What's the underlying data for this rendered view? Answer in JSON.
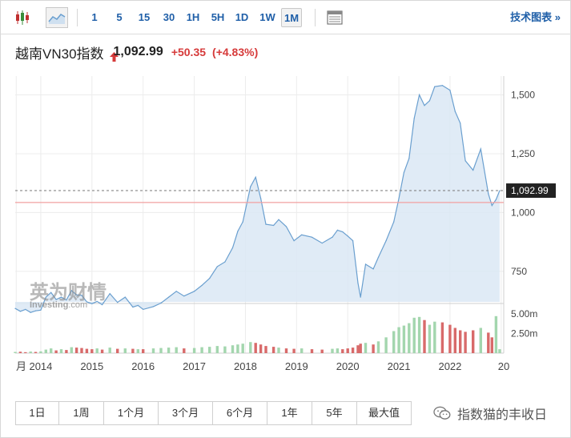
{
  "toolbar": {
    "timeframes": [
      "1",
      "5",
      "15",
      "30",
      "1H",
      "5H",
      "1D",
      "1W",
      "1M"
    ],
    "active_timeframe": "1M",
    "tech_chart_label": "技术图表 »"
  },
  "header": {
    "index_name": "越南VN30指数",
    "price": "1,092.99",
    "change": "+50.35",
    "change_pct": "(+4.83%)",
    "direction": "up"
  },
  "watermark": {
    "cn": "英为财情",
    "en": "Investing",
    "suffix": ".com"
  },
  "price_label": "1,092.99",
  "periods": [
    "1日",
    "1周",
    "1个月",
    "3个月",
    "6个月",
    "1年",
    "5年",
    "最大值"
  ],
  "brand_text": "指数猫的丰收日",
  "colors": {
    "line": "#6a9fcf",
    "area": "#dbe8f4",
    "up_volume": "#a3d6ae",
    "down_volume": "#d86a6a",
    "reference_line": "#f2a0a0",
    "current_label_bg": "#222222",
    "accent_blue": "#1f5fa8",
    "change_red": "#d63a3a"
  },
  "chart_data": {
    "type": "area",
    "title": "越南VN30指数",
    "x_tick_labels": [
      "月",
      "2014",
      "2015",
      "2016",
      "2017",
      "2018",
      "2019",
      "2020",
      "2021",
      "2022",
      "20"
    ],
    "price_axis": {
      "ticks": [
        "1,500",
        "1,250",
        "1,000",
        "750"
      ],
      "tick_values": [
        1500,
        1250,
        1000,
        750
      ],
      "ylim": [
        620,
        1580
      ]
    },
    "volume_axis": {
      "ticks": [
        "5.00m",
        "2.50m"
      ],
      "tick_values": [
        5.0,
        2.5
      ],
      "ylim": [
        0,
        6.0
      ]
    },
    "current_value": 1092.99,
    "reference_value": 1042.64,
    "price_series": [
      {
        "t": 2013.5,
        "v": 592
      },
      {
        "t": 2013.6,
        "v": 580
      },
      {
        "t": 2013.7,
        "v": 588
      },
      {
        "t": 2013.8,
        "v": 575
      },
      {
        "t": 2013.9,
        "v": 582
      },
      {
        "t": 2014.0,
        "v": 585
      },
      {
        "t": 2014.1,
        "v": 640
      },
      {
        "t": 2014.2,
        "v": 660
      },
      {
        "t": 2014.3,
        "v": 630
      },
      {
        "t": 2014.4,
        "v": 640
      },
      {
        "t": 2014.5,
        "v": 628
      },
      {
        "t": 2014.6,
        "v": 668
      },
      {
        "t": 2014.7,
        "v": 650
      },
      {
        "t": 2014.8,
        "v": 648
      },
      {
        "t": 2014.9,
        "v": 620
      },
      {
        "t": 2015.0,
        "v": 612
      },
      {
        "t": 2015.1,
        "v": 622
      },
      {
        "t": 2015.2,
        "v": 608
      },
      {
        "t": 2015.35,
        "v": 655
      },
      {
        "t": 2015.5,
        "v": 618
      },
      {
        "t": 2015.65,
        "v": 640
      },
      {
        "t": 2015.8,
        "v": 598
      },
      {
        "t": 2015.9,
        "v": 605
      },
      {
        "t": 2016.0,
        "v": 588
      },
      {
        "t": 2016.2,
        "v": 600
      },
      {
        "t": 2016.35,
        "v": 615
      },
      {
        "t": 2016.5,
        "v": 640
      },
      {
        "t": 2016.65,
        "v": 665
      },
      {
        "t": 2016.8,
        "v": 645
      },
      {
        "t": 2017.0,
        "v": 665
      },
      {
        "t": 2017.15,
        "v": 690
      },
      {
        "t": 2017.3,
        "v": 720
      },
      {
        "t": 2017.45,
        "v": 770
      },
      {
        "t": 2017.6,
        "v": 790
      },
      {
        "t": 2017.75,
        "v": 850
      },
      {
        "t": 2017.85,
        "v": 920
      },
      {
        "t": 2017.95,
        "v": 960
      },
      {
        "t": 2018.1,
        "v": 1110
      },
      {
        "t": 2018.2,
        "v": 1150
      },
      {
        "t": 2018.3,
        "v": 1060
      },
      {
        "t": 2018.4,
        "v": 950
      },
      {
        "t": 2018.55,
        "v": 945
      },
      {
        "t": 2018.65,
        "v": 970
      },
      {
        "t": 2018.8,
        "v": 940
      },
      {
        "t": 2018.95,
        "v": 880
      },
      {
        "t": 2019.1,
        "v": 905
      },
      {
        "t": 2019.3,
        "v": 895
      },
      {
        "t": 2019.5,
        "v": 870
      },
      {
        "t": 2019.7,
        "v": 895
      },
      {
        "t": 2019.8,
        "v": 925
      },
      {
        "t": 2019.9,
        "v": 918
      },
      {
        "t": 2020.0,
        "v": 900
      },
      {
        "t": 2020.1,
        "v": 880
      },
      {
        "t": 2020.2,
        "v": 700
      },
      {
        "t": 2020.25,
        "v": 640
      },
      {
        "t": 2020.35,
        "v": 780
      },
      {
        "t": 2020.5,
        "v": 760
      },
      {
        "t": 2020.6,
        "v": 810
      },
      {
        "t": 2020.75,
        "v": 880
      },
      {
        "t": 2020.9,
        "v": 960
      },
      {
        "t": 2021.0,
        "v": 1060
      },
      {
        "t": 2021.1,
        "v": 1170
      },
      {
        "t": 2021.2,
        "v": 1230
      },
      {
        "t": 2021.3,
        "v": 1400
      },
      {
        "t": 2021.4,
        "v": 1500
      },
      {
        "t": 2021.5,
        "v": 1455
      },
      {
        "t": 2021.6,
        "v": 1475
      },
      {
        "t": 2021.7,
        "v": 1535
      },
      {
        "t": 2021.85,
        "v": 1540
      },
      {
        "t": 2022.0,
        "v": 1520
      },
      {
        "t": 2022.1,
        "v": 1430
      },
      {
        "t": 2022.2,
        "v": 1380
      },
      {
        "t": 2022.3,
        "v": 1220
      },
      {
        "t": 2022.45,
        "v": 1180
      },
      {
        "t": 2022.6,
        "v": 1270
      },
      {
        "t": 2022.75,
        "v": 1080
      },
      {
        "t": 2022.82,
        "v": 1030
      },
      {
        "t": 2022.9,
        "v": 1055
      },
      {
        "t": 2022.97,
        "v": 1092.99
      }
    ],
    "volume_series": [
      {
        "t": 2013.5,
        "v": 0.15,
        "dir": "up"
      },
      {
        "t": 2013.6,
        "v": 0.18,
        "dir": "down"
      },
      {
        "t": 2013.7,
        "v": 0.12,
        "dir": "down"
      },
      {
        "t": 2013.8,
        "v": 0.2,
        "dir": "up"
      },
      {
        "t": 2013.9,
        "v": 0.15,
        "dir": "down"
      },
      {
        "t": 2014.0,
        "v": 0.22,
        "dir": "up"
      },
      {
        "t": 2014.1,
        "v": 0.45,
        "dir": "up"
      },
      {
        "t": 2014.2,
        "v": 0.6,
        "dir": "up"
      },
      {
        "t": 2014.3,
        "v": 0.35,
        "dir": "down"
      },
      {
        "t": 2014.4,
        "v": 0.5,
        "dir": "up"
      },
      {
        "t": 2014.5,
        "v": 0.4,
        "dir": "down"
      },
      {
        "t": 2014.6,
        "v": 0.75,
        "dir": "up"
      },
      {
        "t": 2014.7,
        "v": 0.7,
        "dir": "down"
      },
      {
        "t": 2014.8,
        "v": 0.65,
        "dir": "down"
      },
      {
        "t": 2014.9,
        "v": 0.55,
        "dir": "down"
      },
      {
        "t": 2015.0,
        "v": 0.5,
        "dir": "down"
      },
      {
        "t": 2015.1,
        "v": 0.6,
        "dir": "up"
      },
      {
        "t": 2015.2,
        "v": 0.45,
        "dir": "down"
      },
      {
        "t": 2015.35,
        "v": 0.7,
        "dir": "up"
      },
      {
        "t": 2015.5,
        "v": 0.55,
        "dir": "down"
      },
      {
        "t": 2015.65,
        "v": 0.6,
        "dir": "up"
      },
      {
        "t": 2015.8,
        "v": 0.55,
        "dir": "down"
      },
      {
        "t": 2015.9,
        "v": 0.5,
        "dir": "up"
      },
      {
        "t": 2016.0,
        "v": 0.5,
        "dir": "down"
      },
      {
        "t": 2016.2,
        "v": 0.6,
        "dir": "up"
      },
      {
        "t": 2016.35,
        "v": 0.65,
        "dir": "up"
      },
      {
        "t": 2016.5,
        "v": 0.7,
        "dir": "up"
      },
      {
        "t": 2016.65,
        "v": 0.75,
        "dir": "up"
      },
      {
        "t": 2016.8,
        "v": 0.6,
        "dir": "down"
      },
      {
        "t": 2017.0,
        "v": 0.65,
        "dir": "up"
      },
      {
        "t": 2017.15,
        "v": 0.75,
        "dir": "up"
      },
      {
        "t": 2017.3,
        "v": 0.8,
        "dir": "up"
      },
      {
        "t": 2017.45,
        "v": 0.9,
        "dir": "up"
      },
      {
        "t": 2017.6,
        "v": 0.85,
        "dir": "up"
      },
      {
        "t": 2017.75,
        "v": 1.0,
        "dir": "up"
      },
      {
        "t": 2017.85,
        "v": 1.1,
        "dir": "up"
      },
      {
        "t": 2017.95,
        "v": 1.2,
        "dir": "up"
      },
      {
        "t": 2018.1,
        "v": 1.4,
        "dir": "up"
      },
      {
        "t": 2018.2,
        "v": 1.3,
        "dir": "down"
      },
      {
        "t": 2018.3,
        "v": 1.1,
        "dir": "down"
      },
      {
        "t": 2018.4,
        "v": 0.9,
        "dir": "down"
      },
      {
        "t": 2018.55,
        "v": 0.8,
        "dir": "down"
      },
      {
        "t": 2018.65,
        "v": 0.7,
        "dir": "up"
      },
      {
        "t": 2018.8,
        "v": 0.6,
        "dir": "down"
      },
      {
        "t": 2018.95,
        "v": 0.55,
        "dir": "down"
      },
      {
        "t": 2019.1,
        "v": 0.6,
        "dir": "up"
      },
      {
        "t": 2019.3,
        "v": 0.5,
        "dir": "down"
      },
      {
        "t": 2019.5,
        "v": 0.45,
        "dir": "down"
      },
      {
        "t": 2019.7,
        "v": 0.55,
        "dir": "up"
      },
      {
        "t": 2019.8,
        "v": 0.6,
        "dir": "up"
      },
      {
        "t": 2019.9,
        "v": 0.5,
        "dir": "down"
      },
      {
        "t": 2020.0,
        "v": 0.6,
        "dir": "down"
      },
      {
        "t": 2020.1,
        "v": 0.7,
        "dir": "down"
      },
      {
        "t": 2020.2,
        "v": 1.0,
        "dir": "down"
      },
      {
        "t": 2020.25,
        "v": 1.2,
        "dir": "down"
      },
      {
        "t": 2020.35,
        "v": 1.3,
        "dir": "up"
      },
      {
        "t": 2020.5,
        "v": 1.1,
        "dir": "down"
      },
      {
        "t": 2020.6,
        "v": 1.5,
        "dir": "up"
      },
      {
        "t": 2020.75,
        "v": 2.0,
        "dir": "up"
      },
      {
        "t": 2020.9,
        "v": 2.8,
        "dir": "up"
      },
      {
        "t": 2021.0,
        "v": 3.3,
        "dir": "up"
      },
      {
        "t": 2021.1,
        "v": 3.5,
        "dir": "up"
      },
      {
        "t": 2021.2,
        "v": 3.8,
        "dir": "up"
      },
      {
        "t": 2021.3,
        "v": 4.5,
        "dir": "up"
      },
      {
        "t": 2021.4,
        "v": 4.6,
        "dir": "up"
      },
      {
        "t": 2021.5,
        "v": 4.2,
        "dir": "down"
      },
      {
        "t": 2021.6,
        "v": 3.6,
        "dir": "up"
      },
      {
        "t": 2021.7,
        "v": 4.0,
        "dir": "up"
      },
      {
        "t": 2021.85,
        "v": 3.9,
        "dir": "down"
      },
      {
        "t": 2022.0,
        "v": 3.6,
        "dir": "down"
      },
      {
        "t": 2022.1,
        "v": 3.2,
        "dir": "down"
      },
      {
        "t": 2022.2,
        "v": 2.9,
        "dir": "down"
      },
      {
        "t": 2022.3,
        "v": 2.7,
        "dir": "down"
      },
      {
        "t": 2022.45,
        "v": 2.9,
        "dir": "down"
      },
      {
        "t": 2022.6,
        "v": 3.2,
        "dir": "up"
      },
      {
        "t": 2022.75,
        "v": 2.6,
        "dir": "down"
      },
      {
        "t": 2022.82,
        "v": 2.0,
        "dir": "down"
      },
      {
        "t": 2022.9,
        "v": 4.7,
        "dir": "up"
      },
      {
        "t": 2022.97,
        "v": 0.5,
        "dir": "up"
      }
    ]
  }
}
